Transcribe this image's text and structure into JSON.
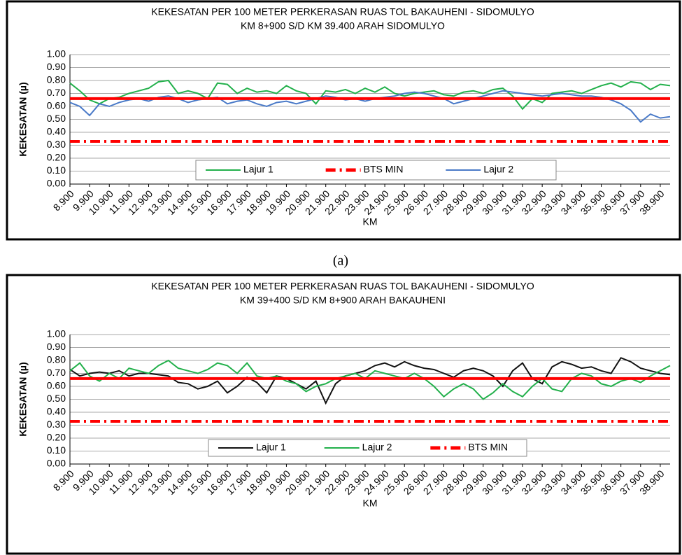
{
  "caption": "(a)",
  "chart_data": [
    {
      "type": "line",
      "title": "KEKESATAN PER 100 METER PERKERASAN RUAS TOL BAKAUHENI - SIDOMULYO",
      "subtitle": "KM 8+900 S/D KM 39.400 ARAH SIDOMULYO",
      "x_label": "KM",
      "y_label": "KEKESATAN  (µ)",
      "grid": true,
      "xlim": [
        8.9,
        39.4
      ],
      "ylim": [
        0,
        1
      ],
      "yticks": [
        {
          "value": 0,
          "label": "0.00"
        },
        {
          "value": 0.1,
          "label": "0.10"
        },
        {
          "value": 0.2,
          "label": "0.20"
        },
        {
          "value": 0.3,
          "label": "0.30"
        },
        {
          "value": 0.4,
          "label": "0.40"
        },
        {
          "value": 0.5,
          "label": "0.50"
        },
        {
          "value": 0.6,
          "label": "0.60"
        },
        {
          "value": 0.7,
          "label": "0.70"
        },
        {
          "value": 0.8,
          "label": "0.80"
        },
        {
          "value": 0.9,
          "label": "0.90"
        },
        {
          "value": 1,
          "label": "1.00"
        }
      ],
      "xticks": [
        {
          "value": 8.9,
          "label": "8.900"
        },
        {
          "value": 9.9,
          "label": "9.900"
        },
        {
          "value": 10.9,
          "label": "10.900"
        },
        {
          "value": 11.9,
          "label": "11.900"
        },
        {
          "value": 12.9,
          "label": "12.900"
        },
        {
          "value": 13.9,
          "label": "13.900"
        },
        {
          "value": 14.9,
          "label": "14.900"
        },
        {
          "value": 15.9,
          "label": "15.900"
        },
        {
          "value": 16.9,
          "label": "16.900"
        },
        {
          "value": 17.9,
          "label": "17.900"
        },
        {
          "value": 18.9,
          "label": "18.900"
        },
        {
          "value": 19.9,
          "label": "19.900"
        },
        {
          "value": 20.9,
          "label": "20.900"
        },
        {
          "value": 21.9,
          "label": "21.900"
        },
        {
          "value": 22.9,
          "label": "22.900"
        },
        {
          "value": 23.9,
          "label": "23.900"
        },
        {
          "value": 24.9,
          "label": "24.900"
        },
        {
          "value": 25.9,
          "label": "25.900"
        },
        {
          "value": 26.9,
          "label": "26.900"
        },
        {
          "value": 27.9,
          "label": "27.900"
        },
        {
          "value": 28.9,
          "label": "28.900"
        },
        {
          "value": 29.9,
          "label": "29.900"
        },
        {
          "value": 30.9,
          "label": "30.900"
        },
        {
          "value": 31.9,
          "label": "31.900"
        },
        {
          "value": 32.9,
          "label": "32.900"
        },
        {
          "value": 33.9,
          "label": "33.900"
        },
        {
          "value": 34.9,
          "label": "34.900"
        },
        {
          "value": 35.9,
          "label": "35.900"
        },
        {
          "value": 36.9,
          "label": "36.900"
        },
        {
          "value": 37.9,
          "label": "37.900"
        },
        {
          "value": 38.9,
          "label": "38.900"
        }
      ],
      "x": [
        8.9,
        9.4,
        9.9,
        10.4,
        10.9,
        11.4,
        11.9,
        12.4,
        12.9,
        13.4,
        13.9,
        14.4,
        14.9,
        15.4,
        15.9,
        16.4,
        16.9,
        17.4,
        17.9,
        18.4,
        18.9,
        19.4,
        19.9,
        20.4,
        20.9,
        21.4,
        21.9,
        22.4,
        22.9,
        23.4,
        23.9,
        24.4,
        24.9,
        25.4,
        25.9,
        26.4,
        26.9,
        27.4,
        27.9,
        28.4,
        28.9,
        29.4,
        29.9,
        30.4,
        30.9,
        31.4,
        31.9,
        32.4,
        32.9,
        33.4,
        33.9,
        34.4,
        34.9,
        35.4,
        35.9,
        36.4,
        36.9,
        37.4,
        37.9,
        38.4,
        38.9,
        39.4
      ],
      "hline": {
        "value": 0.66,
        "color": "#ff0000"
      },
      "series": [
        {
          "name": "Lajur 1",
          "color": "#22b04b",
          "dash": "solid",
          "values": [
            0.78,
            0.72,
            0.65,
            0.62,
            0.66,
            0.67,
            0.7,
            0.72,
            0.74,
            0.79,
            0.8,
            0.7,
            0.72,
            0.7,
            0.66,
            0.78,
            0.77,
            0.7,
            0.74,
            0.71,
            0.72,
            0.7,
            0.76,
            0.72,
            0.7,
            0.62,
            0.72,
            0.71,
            0.73,
            0.7,
            0.74,
            0.71,
            0.75,
            0.7,
            0.68,
            0.7,
            0.71,
            0.72,
            0.69,
            0.68,
            0.71,
            0.72,
            0.7,
            0.73,
            0.74,
            0.68,
            0.58,
            0.66,
            0.63,
            0.7,
            0.71,
            0.72,
            0.7,
            0.73,
            0.76,
            0.78,
            0.75,
            0.79,
            0.78,
            0.73,
            0.77,
            0.76
          ]
        },
        {
          "name": "BTS MIN",
          "color": "#ff0000",
          "dash": "dashdot",
          "values": [
            0.33,
            0.33,
            0.33,
            0.33,
            0.33,
            0.33,
            0.33,
            0.33,
            0.33,
            0.33,
            0.33,
            0.33,
            0.33,
            0.33,
            0.33,
            0.33,
            0.33,
            0.33,
            0.33,
            0.33,
            0.33,
            0.33,
            0.33,
            0.33,
            0.33,
            0.33,
            0.33,
            0.33,
            0.33,
            0.33,
            0.33,
            0.33,
            0.33,
            0.33,
            0.33,
            0.33,
            0.33,
            0.33,
            0.33,
            0.33,
            0.33,
            0.33,
            0.33,
            0.33,
            0.33,
            0.33,
            0.33,
            0.33,
            0.33,
            0.33,
            0.33,
            0.33,
            0.33,
            0.33,
            0.33,
            0.33,
            0.33,
            0.33,
            0.33,
            0.33,
            0.33,
            0.33
          ]
        },
        {
          "name": "Lajur 2",
          "color": "#4a7ac8",
          "dash": "solid",
          "values": [
            0.63,
            0.6,
            0.53,
            0.62,
            0.6,
            0.63,
            0.65,
            0.66,
            0.64,
            0.67,
            0.68,
            0.66,
            0.63,
            0.65,
            0.66,
            0.67,
            0.62,
            0.64,
            0.65,
            0.62,
            0.6,
            0.63,
            0.64,
            0.62,
            0.64,
            0.66,
            0.68,
            0.67,
            0.65,
            0.66,
            0.64,
            0.66,
            0.67,
            0.68,
            0.7,
            0.71,
            0.7,
            0.68,
            0.66,
            0.62,
            0.64,
            0.66,
            0.68,
            0.7,
            0.72,
            0.71,
            0.7,
            0.69,
            0.68,
            0.69,
            0.7,
            0.69,
            0.68,
            0.68,
            0.67,
            0.65,
            0.62,
            0.57,
            0.48,
            0.54,
            0.51,
            0.52
          ]
        }
      ]
    },
    {
      "type": "line",
      "title": "KEKESATAN PER 100 METER PERKERASAN RUAS TOL BAKAUHENI - SIDOMULYO",
      "subtitle": "KM 39+400 S/D KM 8+900 ARAH BAKAUHENI",
      "x_label": "KM",
      "y_label": "KEKESATAN  (µ)",
      "grid": true,
      "xlim": [
        8.9,
        39.4
      ],
      "ylim": [
        0,
        1
      ],
      "yticks": [
        {
          "value": 0,
          "label": "0.00"
        },
        {
          "value": 0.1,
          "label": "0.10"
        },
        {
          "value": 0.2,
          "label": "0.20"
        },
        {
          "value": 0.3,
          "label": "0.30"
        },
        {
          "value": 0.4,
          "label": "0.40"
        },
        {
          "value": 0.5,
          "label": "0.50"
        },
        {
          "value": 0.6,
          "label": "0.60"
        },
        {
          "value": 0.7,
          "label": "0.70"
        },
        {
          "value": 0.8,
          "label": "0.80"
        },
        {
          "value": 0.9,
          "label": "0.90"
        },
        {
          "value": 1,
          "label": "1.00"
        }
      ],
      "xticks": [
        {
          "value": 8.9,
          "label": "8.900"
        },
        {
          "value": 9.9,
          "label": "9.900"
        },
        {
          "value": 10.9,
          "label": "10.900"
        },
        {
          "value": 11.9,
          "label": "11.900"
        },
        {
          "value": 12.9,
          "label": "12.900"
        },
        {
          "value": 13.9,
          "label": "13.900"
        },
        {
          "value": 14.9,
          "label": "14.900"
        },
        {
          "value": 15.9,
          "label": "15.900"
        },
        {
          "value": 16.9,
          "label": "16.900"
        },
        {
          "value": 17.9,
          "label": "17.900"
        },
        {
          "value": 18.9,
          "label": "18.900"
        },
        {
          "value": 19.9,
          "label": "19.900"
        },
        {
          "value": 20.9,
          "label": "20.900"
        },
        {
          "value": 21.9,
          "label": "21.900"
        },
        {
          "value": 22.9,
          "label": "22.900"
        },
        {
          "value": 23.9,
          "label": "23.900"
        },
        {
          "value": 24.9,
          "label": "24.900"
        },
        {
          "value": 25.9,
          "label": "25.900"
        },
        {
          "value": 26.9,
          "label": "26.900"
        },
        {
          "value": 27.9,
          "label": "27.900"
        },
        {
          "value": 28.9,
          "label": "28.900"
        },
        {
          "value": 29.9,
          "label": "29.900"
        },
        {
          "value": 30.9,
          "label": "30.900"
        },
        {
          "value": 31.9,
          "label": "31.900"
        },
        {
          "value": 32.9,
          "label": "32.900"
        },
        {
          "value": 33.9,
          "label": "33.900"
        },
        {
          "value": 34.9,
          "label": "34.900"
        },
        {
          "value": 35.9,
          "label": "35.900"
        },
        {
          "value": 36.9,
          "label": "36.900"
        },
        {
          "value": 37.9,
          "label": "37.900"
        },
        {
          "value": 38.9,
          "label": "38.900"
        }
      ],
      "x": [
        8.9,
        9.4,
        9.9,
        10.4,
        10.9,
        11.4,
        11.9,
        12.4,
        12.9,
        13.4,
        13.9,
        14.4,
        14.9,
        15.4,
        15.9,
        16.4,
        16.9,
        17.4,
        17.9,
        18.4,
        18.9,
        19.4,
        19.9,
        20.4,
        20.9,
        21.4,
        21.9,
        22.4,
        22.9,
        23.4,
        23.9,
        24.4,
        24.9,
        25.4,
        25.9,
        26.4,
        26.9,
        27.4,
        27.9,
        28.4,
        28.9,
        29.4,
        29.9,
        30.4,
        30.9,
        31.4,
        31.9,
        32.4,
        32.9,
        33.4,
        33.9,
        34.4,
        34.9,
        35.4,
        35.9,
        36.4,
        36.9,
        37.4,
        37.9,
        38.4,
        38.9,
        39.4
      ],
      "hline": {
        "value": 0.66,
        "color": "#ff0000"
      },
      "series": [
        {
          "name": "Lajur 1",
          "color": "#111111",
          "dash": "solid",
          "values": [
            0.73,
            0.68,
            0.7,
            0.71,
            0.7,
            0.72,
            0.68,
            0.7,
            0.7,
            0.69,
            0.68,
            0.63,
            0.62,
            0.58,
            0.6,
            0.64,
            0.55,
            0.6,
            0.67,
            0.63,
            0.55,
            0.68,
            0.66,
            0.62,
            0.58,
            0.64,
            0.47,
            0.62,
            0.68,
            0.7,
            0.72,
            0.76,
            0.78,
            0.75,
            0.79,
            0.76,
            0.74,
            0.73,
            0.7,
            0.67,
            0.72,
            0.74,
            0.72,
            0.68,
            0.6,
            0.72,
            0.78,
            0.66,
            0.62,
            0.75,
            0.79,
            0.77,
            0.74,
            0.75,
            0.72,
            0.7,
            0.82,
            0.79,
            0.74,
            0.72,
            0.7,
            0.69
          ]
        },
        {
          "name": "Lajur 2",
          "color": "#22b04b",
          "dash": "solid",
          "values": [
            0.72,
            0.78,
            0.68,
            0.64,
            0.7,
            0.66,
            0.74,
            0.72,
            0.7,
            0.76,
            0.8,
            0.74,
            0.72,
            0.7,
            0.73,
            0.78,
            0.76,
            0.7,
            0.78,
            0.68,
            0.66,
            0.68,
            0.64,
            0.62,
            0.56,
            0.6,
            0.62,
            0.66,
            0.68,
            0.7,
            0.66,
            0.72,
            0.7,
            0.68,
            0.66,
            0.7,
            0.66,
            0.6,
            0.52,
            0.58,
            0.62,
            0.58,
            0.5,
            0.55,
            0.62,
            0.56,
            0.52,
            0.6,
            0.66,
            0.58,
            0.56,
            0.66,
            0.7,
            0.68,
            0.62,
            0.6,
            0.64,
            0.66,
            0.63,
            0.68,
            0.72,
            0.76
          ]
        },
        {
          "name": "BTS MIN",
          "color": "#ff0000",
          "dash": "dashdot",
          "values": [
            0.33,
            0.33,
            0.33,
            0.33,
            0.33,
            0.33,
            0.33,
            0.33,
            0.33,
            0.33,
            0.33,
            0.33,
            0.33,
            0.33,
            0.33,
            0.33,
            0.33,
            0.33,
            0.33,
            0.33,
            0.33,
            0.33,
            0.33,
            0.33,
            0.33,
            0.33,
            0.33,
            0.33,
            0.33,
            0.33,
            0.33,
            0.33,
            0.33,
            0.33,
            0.33,
            0.33,
            0.33,
            0.33,
            0.33,
            0.33,
            0.33,
            0.33,
            0.33,
            0.33,
            0.33,
            0.33,
            0.33,
            0.33,
            0.33,
            0.33,
            0.33,
            0.33,
            0.33,
            0.33,
            0.33,
            0.33,
            0.33,
            0.33,
            0.33,
            0.33,
            0.33,
            0.33
          ]
        }
      ]
    }
  ]
}
